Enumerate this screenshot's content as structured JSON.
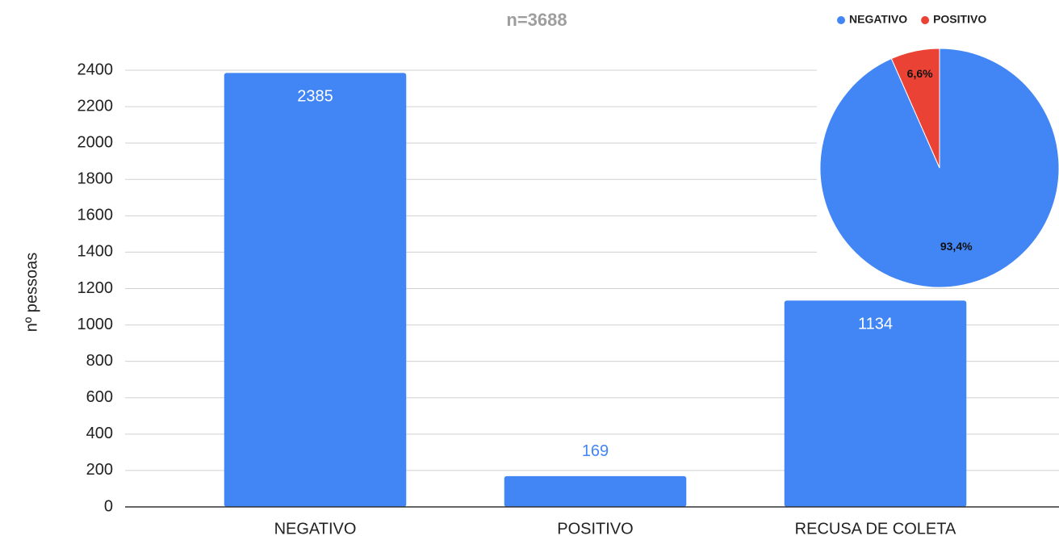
{
  "chart_data": [
    {
      "type": "bar",
      "title": "n=3688",
      "y_label": "nº pessoas",
      "categories": [
        "NEGATIVO",
        "POSITIVO",
        "RECUSA DE COLETA"
      ],
      "values": [
        2385,
        169,
        1134
      ],
      "color": "#4285f4",
      "ylim": [
        0,
        2400
      ],
      "yticks": [
        0,
        200,
        400,
        600,
        800,
        1000,
        1200,
        1400,
        1600,
        1800,
        2000,
        2200,
        2400
      ],
      "grid": true,
      "data_labels": true
    },
    {
      "type": "pie",
      "legend_position": "top",
      "series": [
        {
          "name": "NEGATIVO",
          "color": "#4285f4",
          "value": 93.4,
          "value_label": "93,4%"
        },
        {
          "name": "POSITIVO",
          "color": "#ea4335",
          "value": 6.6,
          "value_label": "6,6%"
        }
      ]
    }
  ]
}
